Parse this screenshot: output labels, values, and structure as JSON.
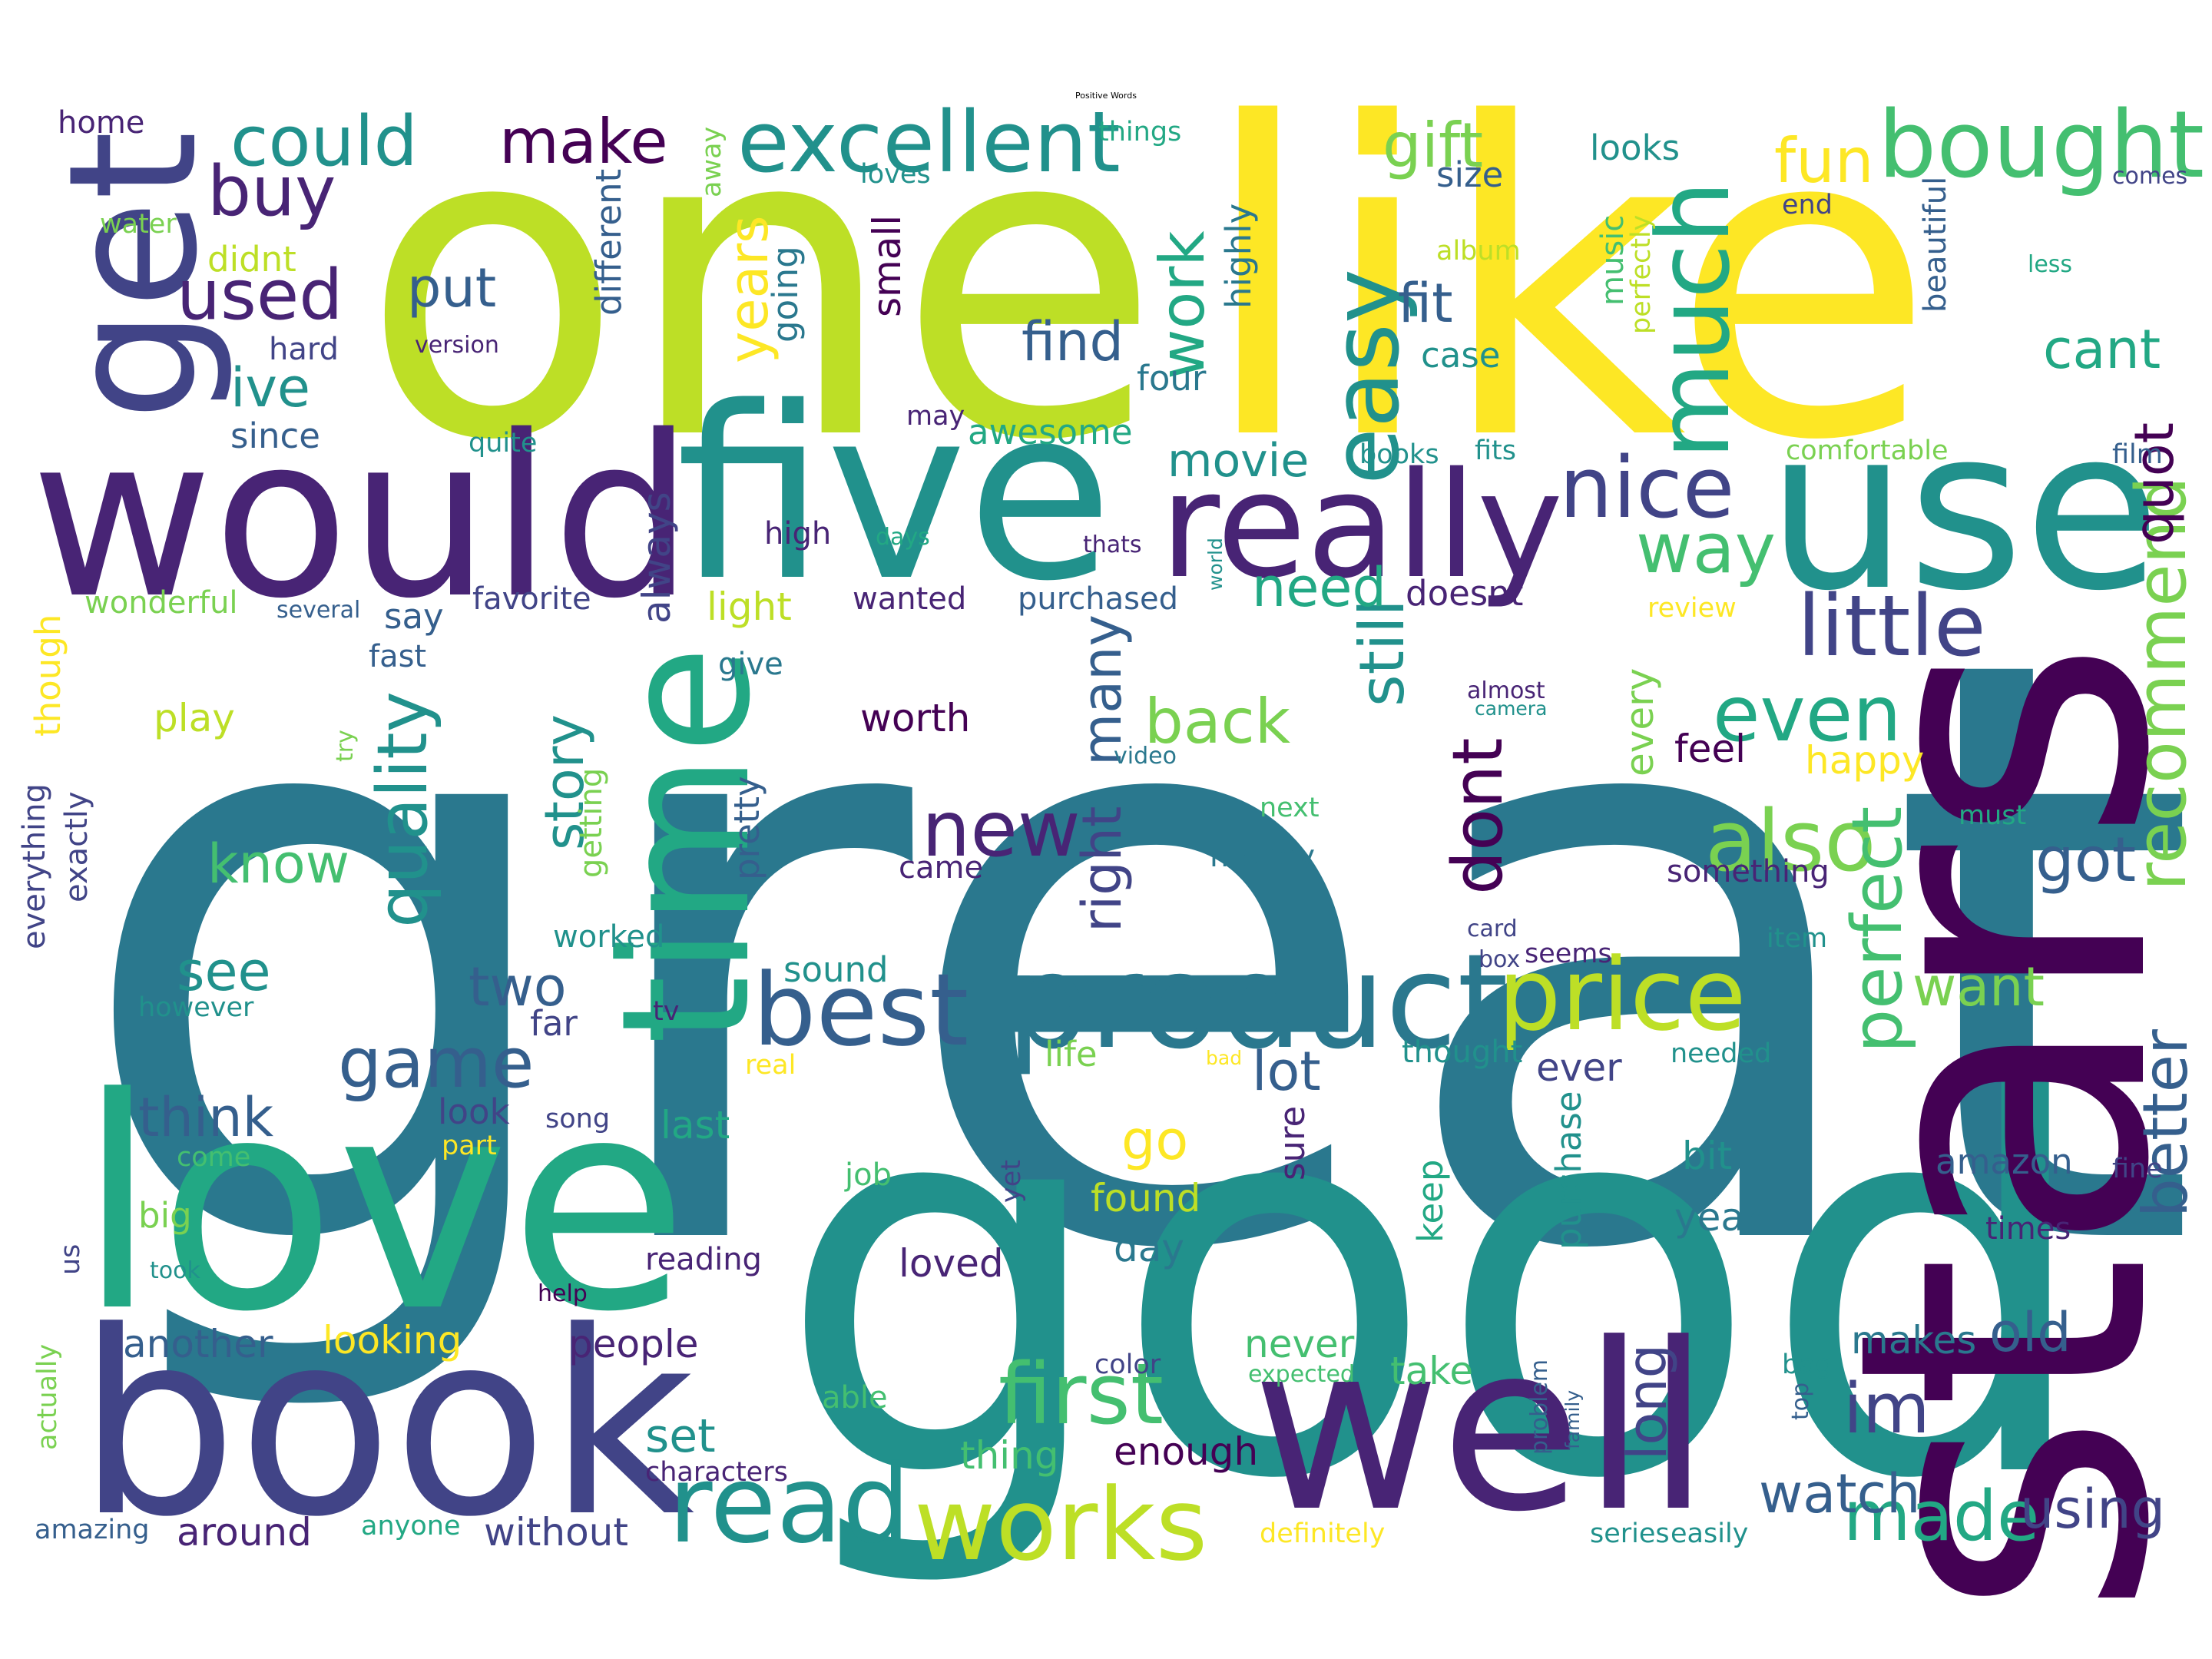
{
  "title": "Positive Words",
  "palette": {
    "v1": "#440154",
    "v2": "#482475",
    "v3": "#414487",
    "v4": "#355f8d",
    "v5": "#2a788e",
    "v6": "#21918c",
    "v7": "#22a884",
    "v8": "#44bf70",
    "v9": "#7ad151",
    "v10": "#bddf26",
    "v11": "#fde725"
  },
  "words": [
    {
      "t": "great",
      "c": "v5",
      "r": 0
    },
    {
      "t": "good",
      "c": "v6",
      "r": 0
    },
    {
      "t": "one",
      "c": "v10",
      "r": 0
    },
    {
      "t": "like",
      "c": "v11",
      "r": 0
    },
    {
      "t": "stars",
      "c": "v1",
      "r": 1
    },
    {
      "t": "love",
      "c": "v7",
      "r": 0
    },
    {
      "t": "book",
      "c": "v3",
      "r": 0
    },
    {
      "t": "well",
      "c": "v2",
      "r": 0
    },
    {
      "t": "would",
      "c": "v2",
      "r": 0
    },
    {
      "t": "five",
      "c": "v6",
      "r": 0
    },
    {
      "t": "use",
      "c": "v6",
      "r": 0
    },
    {
      "t": "time",
      "c": "v7",
      "r": 1
    },
    {
      "t": "get",
      "c": "v3",
      "r": 1
    },
    {
      "t": "really",
      "c": "v2",
      "r": 0
    },
    {
      "t": "product",
      "c": "v5",
      "r": 0
    },
    {
      "t": "read",
      "c": "v6",
      "r": 0
    },
    {
      "t": "works",
      "c": "v10",
      "r": 0
    },
    {
      "t": "price",
      "c": "v10",
      "r": 0
    },
    {
      "t": "best",
      "c": "v4",
      "r": 0
    },
    {
      "t": "much",
      "c": "v7",
      "r": 1
    },
    {
      "t": "easy",
      "c": "v6",
      "r": 1
    },
    {
      "t": "bought",
      "c": "v8",
      "r": 0
    },
    {
      "t": "excellent",
      "c": "v6",
      "r": 0
    },
    {
      "t": "little",
      "c": "v3",
      "r": 0
    },
    {
      "t": "nice",
      "c": "v3",
      "r": 0
    },
    {
      "t": "also",
      "c": "v9",
      "r": 0
    },
    {
      "t": "first",
      "c": "v8",
      "r": 0
    },
    {
      "t": "perfect",
      "c": "v8",
      "r": 1
    },
    {
      "t": "recommend",
      "c": "v9",
      "r": 1
    },
    {
      "t": "even",
      "c": "v7",
      "r": 0
    },
    {
      "t": "new",
      "c": "v2",
      "r": 0
    },
    {
      "t": "could",
      "c": "v6",
      "r": 0
    },
    {
      "t": "buy",
      "c": "v2",
      "r": 0
    },
    {
      "t": "used",
      "c": "v2",
      "r": 0
    },
    {
      "t": "make",
      "c": "v1",
      "r": 0
    },
    {
      "t": "work",
      "c": "v7",
      "r": 1
    },
    {
      "t": "gift",
      "c": "v9",
      "r": 0
    },
    {
      "t": "fun",
      "c": "v11",
      "r": 0
    },
    {
      "t": "way",
      "c": "v8",
      "r": 0
    },
    {
      "t": "game",
      "c": "v4",
      "r": 0
    },
    {
      "t": "quality",
      "c": "v6",
      "r": 1
    },
    {
      "t": "back",
      "c": "v9",
      "r": 0
    },
    {
      "t": "better",
      "c": "v4",
      "r": 1
    },
    {
      "t": "made",
      "c": "v7",
      "r": 0
    },
    {
      "t": "dont",
      "c": "v1",
      "r": 1
    },
    {
      "t": "still",
      "c": "v6",
      "r": 1
    },
    {
      "t": "im",
      "c": "v3",
      "r": 0
    },
    {
      "t": "watch",
      "c": "v4",
      "r": 0
    },
    {
      "t": "using",
      "c": "v3",
      "r": 0
    },
    {
      "t": "got",
      "c": "v4",
      "r": 0
    },
    {
      "t": "find",
      "c": "v4",
      "r": 0
    },
    {
      "t": "cant",
      "c": "v7",
      "r": 0
    },
    {
      "t": "fit",
      "c": "v4",
      "r": 0
    },
    {
      "t": "ive",
      "c": "v6",
      "r": 0
    },
    {
      "t": "put",
      "c": "v4",
      "r": 0
    },
    {
      "t": "see",
      "c": "v6",
      "r": 0
    },
    {
      "t": "two",
      "c": "v4",
      "r": 0
    },
    {
      "t": "know",
      "c": "v8",
      "r": 0
    },
    {
      "t": "think",
      "c": "v4",
      "r": 0
    },
    {
      "t": "movie",
      "c": "v6",
      "r": 0
    },
    {
      "t": "need",
      "c": "v7",
      "r": 0
    },
    {
      "t": "lot",
      "c": "v4",
      "r": 0
    },
    {
      "t": "go",
      "c": "v11",
      "r": 0
    },
    {
      "t": "story",
      "c": "v6",
      "r": 1
    },
    {
      "t": "right",
      "c": "v3",
      "r": 1
    },
    {
      "t": "many",
      "c": "v4",
      "r": 1
    },
    {
      "t": "want",
      "c": "v9",
      "r": 0
    },
    {
      "t": "old",
      "c": "v4",
      "r": 0
    },
    {
      "t": "long",
      "c": "v3",
      "r": 1
    },
    {
      "t": "quot",
      "c": "v1",
      "r": 1
    },
    {
      "t": "years",
      "c": "v11",
      "r": 1
    },
    {
      "t": "set",
      "c": "v6",
      "r": 0
    },
    {
      "t": "thing",
      "c": "v8",
      "r": 0
    },
    {
      "t": "looking",
      "c": "v11",
      "r": 0
    },
    {
      "t": "another",
      "c": "v4",
      "r": 0
    },
    {
      "t": "around",
      "c": "v2",
      "r": 0
    },
    {
      "t": "without",
      "c": "v3",
      "r": 0
    },
    {
      "t": "people",
      "c": "v2",
      "r": 0
    },
    {
      "t": "found",
      "c": "v10",
      "r": 0
    },
    {
      "t": "loved",
      "c": "v2",
      "r": 0
    },
    {
      "t": "day",
      "c": "v5",
      "r": 0
    },
    {
      "t": "enough",
      "c": "v1",
      "r": 0
    },
    {
      "t": "take",
      "c": "v8",
      "r": 0
    },
    {
      "t": "never",
      "c": "v8",
      "r": 0
    },
    {
      "t": "makes",
      "c": "v5",
      "r": 0
    },
    {
      "t": "year",
      "c": "v5",
      "r": 0
    },
    {
      "t": "bit",
      "c": "v6",
      "r": 0
    },
    {
      "t": "amazon",
      "c": "v4",
      "r": 0
    },
    {
      "t": "ever",
      "c": "v3",
      "r": 0
    },
    {
      "t": "every",
      "c": "v9",
      "r": 1
    },
    {
      "t": "feel",
      "c": "v1",
      "r": 0
    },
    {
      "t": "happy",
      "c": "v11",
      "r": 0
    },
    {
      "t": "worth",
      "c": "v1",
      "r": 0
    },
    {
      "t": "always",
      "c": "v3",
      "r": 1
    },
    {
      "t": "small",
      "c": "v1",
      "r": 1
    },
    {
      "t": "going",
      "c": "v5",
      "r": 1
    },
    {
      "t": "different",
      "c": "v4",
      "r": 1
    },
    {
      "t": "highly",
      "c": "v5",
      "r": 1
    },
    {
      "t": "four",
      "c": "v5",
      "r": 0
    },
    {
      "t": "awesome",
      "c": "v7",
      "r": 0
    },
    {
      "t": "size",
      "c": "v4",
      "r": 0
    },
    {
      "t": "looks",
      "c": "v6",
      "r": 0
    },
    {
      "t": "case",
      "c": "v6",
      "r": 0
    },
    {
      "t": "music",
      "c": "v8",
      "r": 1
    },
    {
      "t": "perfectly",
      "c": "v10",
      "r": 1
    },
    {
      "t": "beautiful",
      "c": "v4",
      "r": 1
    },
    {
      "t": "album",
      "c": "v10",
      "r": 0
    },
    {
      "t": "light",
      "c": "v10",
      "r": 0
    },
    {
      "t": "doesnt",
      "c": "v2",
      "r": 0
    },
    {
      "t": "say",
      "c": "v4",
      "r": 0
    },
    {
      "t": "favorite",
      "c": "v3",
      "r": 0
    },
    {
      "t": "wanted",
      "c": "v2",
      "r": 0
    },
    {
      "t": "purchased",
      "c": "v4",
      "r": 0
    },
    {
      "t": "play",
      "c": "v10",
      "r": 0
    },
    {
      "t": "pretty",
      "c": "v4",
      "r": 1
    },
    {
      "t": "sound",
      "c": "v6",
      "r": 0
    },
    {
      "t": "far",
      "c": "v3",
      "r": 0
    },
    {
      "t": "last",
      "c": "v7",
      "r": 0
    },
    {
      "t": "life",
      "c": "v9",
      "r": 0
    },
    {
      "t": "look",
      "c": "v3",
      "r": 0
    },
    {
      "t": "sure",
      "c": "v2",
      "r": 1
    },
    {
      "t": "keep",
      "c": "v7",
      "r": 1
    },
    {
      "t": "purchase",
      "c": "v6",
      "r": 1
    },
    {
      "t": "big",
      "c": "v9",
      "r": 0
    },
    {
      "t": "song",
      "c": "v3",
      "r": 0
    },
    {
      "t": "job",
      "c": "v8",
      "r": 0
    },
    {
      "t": "reading",
      "c": "v2",
      "r": 0
    },
    {
      "t": "worked",
      "c": "v6",
      "r": 0
    },
    {
      "t": "however",
      "c": "v6",
      "r": 0
    },
    {
      "t": "since",
      "c": "v4",
      "r": 0
    },
    {
      "t": "hard",
      "c": "v3",
      "r": 0
    },
    {
      "t": "version",
      "c": "v2",
      "r": 0
    },
    {
      "t": "didnt",
      "c": "v10",
      "r": 0
    },
    {
      "t": "water",
      "c": "v9",
      "r": 0
    },
    {
      "t": "home",
      "c": "v2",
      "r": 0
    },
    {
      "t": "away",
      "c": "v9",
      "r": 1
    },
    {
      "t": "things",
      "c": "v7",
      "r": 0
    },
    {
      "t": "loves",
      "c": "v6",
      "r": 0
    },
    {
      "t": "end",
      "c": "v3",
      "r": 0
    },
    {
      "t": "less",
      "c": "v7",
      "r": 0
    },
    {
      "t": "comes",
      "c": "v3",
      "r": 0
    },
    {
      "t": "comfortable",
      "c": "v9",
      "r": 0
    },
    {
      "t": "film",
      "c": "v4",
      "r": 0
    },
    {
      "t": "books",
      "c": "v6",
      "r": 0
    },
    {
      "t": "fits",
      "c": "v6",
      "r": 0
    },
    {
      "t": "quite",
      "c": "v6",
      "r": 0
    },
    {
      "t": "may",
      "c": "v2",
      "r": 0
    },
    {
      "t": "high",
      "c": "v2",
      "r": 0
    },
    {
      "t": "days",
      "c": "v7",
      "r": 0
    },
    {
      "t": "thats",
      "c": "v2",
      "r": 0
    },
    {
      "t": "world",
      "c": "v6",
      "r": 1
    },
    {
      "t": "wonderful",
      "c": "v9",
      "r": 0
    },
    {
      "t": "several",
      "c": "v4",
      "r": 0
    },
    {
      "t": "review",
      "c": "v11",
      "r": 0
    },
    {
      "t": "though",
      "c": "v11",
      "r": 1
    },
    {
      "t": "fast",
      "c": "v4",
      "r": 0
    },
    {
      "t": "give",
      "c": "v5",
      "r": 0
    },
    {
      "t": "almost",
      "c": "v2",
      "r": 0
    },
    {
      "t": "camera",
      "c": "v6",
      "r": 0
    },
    {
      "t": "try",
      "c": "v9",
      "r": 1
    },
    {
      "t": "everything",
      "c": "v3",
      "r": 1
    },
    {
      "t": "exactly",
      "c": "v3",
      "r": 1
    },
    {
      "t": "getting",
      "c": "v9",
      "r": 1
    },
    {
      "t": "video",
      "c": "v5",
      "r": 0
    },
    {
      "t": "next",
      "c": "v8",
      "r": 0
    },
    {
      "t": "money",
      "c": "v5",
      "r": 0
    },
    {
      "t": "came",
      "c": "v2",
      "r": 0
    },
    {
      "t": "something",
      "c": "v2",
      "r": 0
    },
    {
      "t": "must",
      "c": "v7",
      "r": 0
    },
    {
      "t": "card",
      "c": "v3",
      "r": 0
    },
    {
      "t": "box",
      "c": "v3",
      "r": 0
    },
    {
      "t": "seems",
      "c": "v2",
      "r": 0
    },
    {
      "t": "item",
      "c": "v6",
      "r": 0
    },
    {
      "t": "tv",
      "c": "v2",
      "r": 0
    },
    {
      "t": "real",
      "c": "v11",
      "r": 0
    },
    {
      "t": "bad",
      "c": "v11",
      "r": 0
    },
    {
      "t": "thought",
      "c": "v6",
      "r": 0
    },
    {
      "t": "needed",
      "c": "v6",
      "r": 0
    },
    {
      "t": "part",
      "c": "v11",
      "r": 0
    },
    {
      "t": "come",
      "c": "v8",
      "r": 0
    },
    {
      "t": "yet",
      "c": "v3",
      "r": 1
    },
    {
      "t": "fine",
      "c": "v3",
      "r": 0
    },
    {
      "t": "times",
      "c": "v2",
      "r": 0
    },
    {
      "t": "took",
      "c": "v6",
      "r": 0
    },
    {
      "t": "us",
      "c": "v3",
      "r": 1
    },
    {
      "t": "help",
      "c": "v1",
      "r": 0
    },
    {
      "t": "color",
      "c": "v3",
      "r": 0
    },
    {
      "t": "expected",
      "c": "v8",
      "r": 0
    },
    {
      "t": "able",
      "c": "v8",
      "r": 0
    },
    {
      "t": "problem",
      "c": "v4",
      "r": 1
    },
    {
      "t": "family",
      "c": "v4",
      "r": 1
    },
    {
      "t": "top",
      "c": "v4",
      "r": 1
    },
    {
      "t": "bag",
      "c": "v6",
      "r": 0
    },
    {
      "t": "characters",
      "c": "v2",
      "r": 0
    },
    {
      "t": "anyone",
      "c": "v7",
      "r": 0
    },
    {
      "t": "amazing",
      "c": "v4",
      "r": 0
    },
    {
      "t": "actually",
      "c": "v9",
      "r": 1
    },
    {
      "t": "definitely",
      "c": "v11",
      "r": 0
    },
    {
      "t": "series",
      "c": "v6",
      "r": 0
    },
    {
      "t": "easily",
      "c": "v6",
      "r": 0
    }
  ]
}
